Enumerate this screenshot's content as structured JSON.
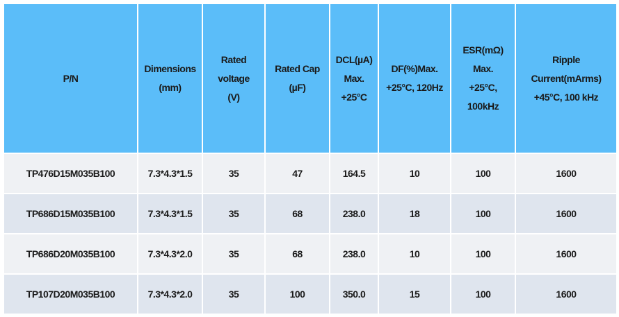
{
  "table": {
    "header": [
      [
        "P/N"
      ],
      [
        "Dimensions",
        "(mm)"
      ],
      [
        "Rated",
        "voltage",
        "(V)"
      ],
      [
        "Rated Cap",
        "(µF)"
      ],
      [
        "DCL(µA)",
        "Max.",
        "+25°C"
      ],
      [
        "DF(%)Max.",
        "+25°C, 120Hz"
      ],
      [
        "ESR(mΩ)",
        "Max.",
        "+25°C,",
        "100kHz"
      ],
      [
        "Ripple",
        "Current(mArms)",
        "+45°C, 100 kHz"
      ]
    ],
    "rows": [
      [
        "TP476D15M035B100",
        "7.3*4.3*1.5",
        "35",
        "47",
        "164.5",
        "10",
        "100",
        "1600"
      ],
      [
        "TP686D15M035B100",
        "7.3*4.3*1.5",
        "35",
        "68",
        "238.0",
        "18",
        "100",
        "1600"
      ],
      [
        "TP686D20M035B100",
        "7.3*4.3*2.0",
        "35",
        "68",
        "238.0",
        "10",
        "100",
        "1600"
      ],
      [
        "TP107D20M035B100",
        "7.3*4.3*2.0",
        "35",
        "100",
        "350.0",
        "15",
        "100",
        "1600"
      ]
    ]
  }
}
